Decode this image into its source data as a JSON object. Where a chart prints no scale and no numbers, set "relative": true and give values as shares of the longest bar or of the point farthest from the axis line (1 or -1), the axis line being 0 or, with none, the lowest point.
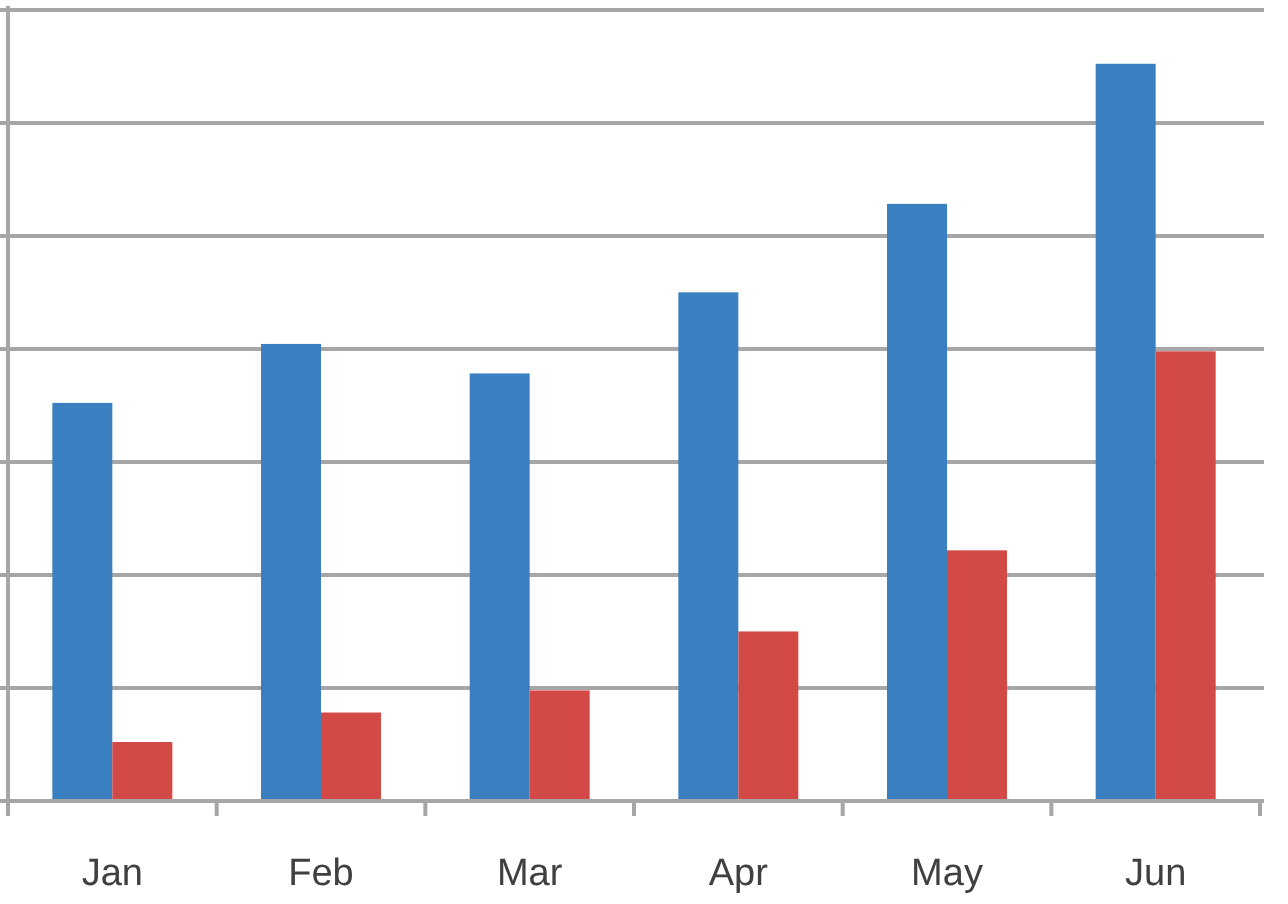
{
  "chart_data": {
    "type": "bar",
    "relative": true,
    "grid": true,
    "categories": [
      "Jan",
      "Feb",
      "Mar",
      "Apr",
      "May",
      "Jun"
    ],
    "series": [
      {
        "color": "#3a80c1",
        "values": [
          0.54,
          0.62,
          0.58,
          0.69,
          0.81,
          1
        ]
      },
      {
        "color": "#d24946",
        "values": [
          0.08,
          0.12,
          0.15,
          0.23,
          0.34,
          0.61
        ]
      }
    ]
  }
}
